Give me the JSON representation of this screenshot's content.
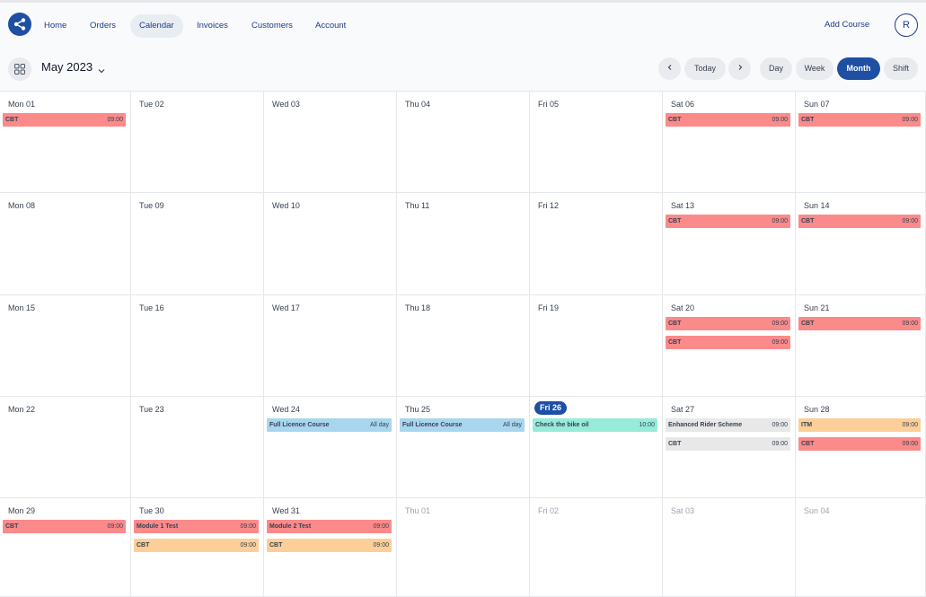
{
  "nav": {
    "items": [
      {
        "label": "Home",
        "active": false
      },
      {
        "label": "Orders",
        "active": false
      },
      {
        "label": "Calendar",
        "active": true
      },
      {
        "label": "Invoices",
        "active": false
      },
      {
        "label": "Customers",
        "active": false
      },
      {
        "label": "Account",
        "active": false
      }
    ],
    "add_course": "Add Course",
    "avatar_initial": "R"
  },
  "toolbar": {
    "month": "May 2023",
    "today": "Today",
    "views": [
      {
        "label": "Day",
        "active": false
      },
      {
        "label": "Week",
        "active": false
      },
      {
        "label": "Month",
        "active": true
      },
      {
        "label": "Shift",
        "active": false
      }
    ]
  },
  "colors": {
    "accent": "#1e4fa3",
    "event_red": "#fb8a8a",
    "event_blue": "#a9d6ef",
    "event_teal": "#96ecd9",
    "event_grey": "#e8e8e8",
    "event_orange": "#fccf98"
  },
  "weeks": [
    [
      {
        "label": "Mon 01",
        "events": [
          {
            "title": "CBT",
            "time": "09:00",
            "color": "red"
          }
        ]
      },
      {
        "label": "Tue 02",
        "events": []
      },
      {
        "label": "Wed 03",
        "events": []
      },
      {
        "label": "Thu 04",
        "events": []
      },
      {
        "label": "Fri 05",
        "events": []
      },
      {
        "label": "Sat 06",
        "events": [
          {
            "title": "CBT",
            "time": "09:00",
            "color": "red"
          }
        ]
      },
      {
        "label": "Sun 07",
        "events": [
          {
            "title": "CBT",
            "time": "09:00",
            "color": "red"
          }
        ]
      }
    ],
    [
      {
        "label": "Mon 08",
        "events": []
      },
      {
        "label": "Tue 09",
        "events": []
      },
      {
        "label": "Wed 10",
        "events": []
      },
      {
        "label": "Thu 11",
        "events": []
      },
      {
        "label": "Fri 12",
        "events": []
      },
      {
        "label": "Sat 13",
        "events": [
          {
            "title": "CBT",
            "time": "09:00",
            "color": "red"
          }
        ]
      },
      {
        "label": "Sun 14",
        "events": [
          {
            "title": "CBT",
            "time": "09:00",
            "color": "red"
          }
        ]
      }
    ],
    [
      {
        "label": "Mon 15",
        "events": []
      },
      {
        "label": "Tue 16",
        "events": []
      },
      {
        "label": "Wed 17",
        "events": []
      },
      {
        "label": "Thu 18",
        "events": []
      },
      {
        "label": "Fri 19",
        "events": []
      },
      {
        "label": "Sat 20",
        "events": [
          {
            "title": "CBT",
            "time": "09:00",
            "color": "red"
          },
          {
            "title": "CBT",
            "time": "09:00",
            "color": "red"
          }
        ]
      },
      {
        "label": "Sun 21",
        "events": [
          {
            "title": "CBT",
            "time": "09:00",
            "color": "red"
          }
        ]
      }
    ],
    [
      {
        "label": "Mon 22",
        "events": []
      },
      {
        "label": "Tue 23",
        "events": []
      },
      {
        "label": "Wed 24",
        "events": [
          {
            "title": "Full Licence Course",
            "time": "All day",
            "color": "blue"
          }
        ]
      },
      {
        "label": "Thu 25",
        "events": [
          {
            "title": "Full Licence Course",
            "time": "All day",
            "color": "blue"
          }
        ]
      },
      {
        "label": "Fri 26",
        "today": true,
        "events": [
          {
            "title": "Check the bike oil",
            "time": "10:00",
            "color": "teal"
          }
        ]
      },
      {
        "label": "Sat 27",
        "events": [
          {
            "title": "Enhanced Rider Scheme",
            "time": "09:00",
            "color": "grey"
          },
          {
            "title": "CBT",
            "time": "09:00",
            "color": "grey"
          }
        ]
      },
      {
        "label": "Sun 28",
        "events": [
          {
            "title": "ITM",
            "time": "09:00",
            "color": "orange"
          },
          {
            "title": "CBT",
            "time": "09:00",
            "color": "red"
          }
        ]
      }
    ],
    [
      {
        "label": "Mon 29",
        "events": [
          {
            "title": "CBT",
            "time": "09:00",
            "color": "red"
          }
        ]
      },
      {
        "label": "Tue 30",
        "events": [
          {
            "title": "Module 1 Test",
            "time": "09:00",
            "color": "red"
          },
          {
            "title": "CBT",
            "time": "09:00",
            "color": "orange"
          }
        ]
      },
      {
        "label": "Wed 31",
        "events": [
          {
            "title": "Module 2 Test",
            "time": "09:00",
            "color": "red"
          },
          {
            "title": "CBT",
            "time": "09:00",
            "color": "orange"
          }
        ]
      },
      {
        "label": "Thu 01",
        "other": true,
        "events": []
      },
      {
        "label": "Fri 02",
        "other": true,
        "events": []
      },
      {
        "label": "Sat 03",
        "other": true,
        "events": []
      },
      {
        "label": "Sun 04",
        "other": true,
        "events": []
      }
    ]
  ]
}
